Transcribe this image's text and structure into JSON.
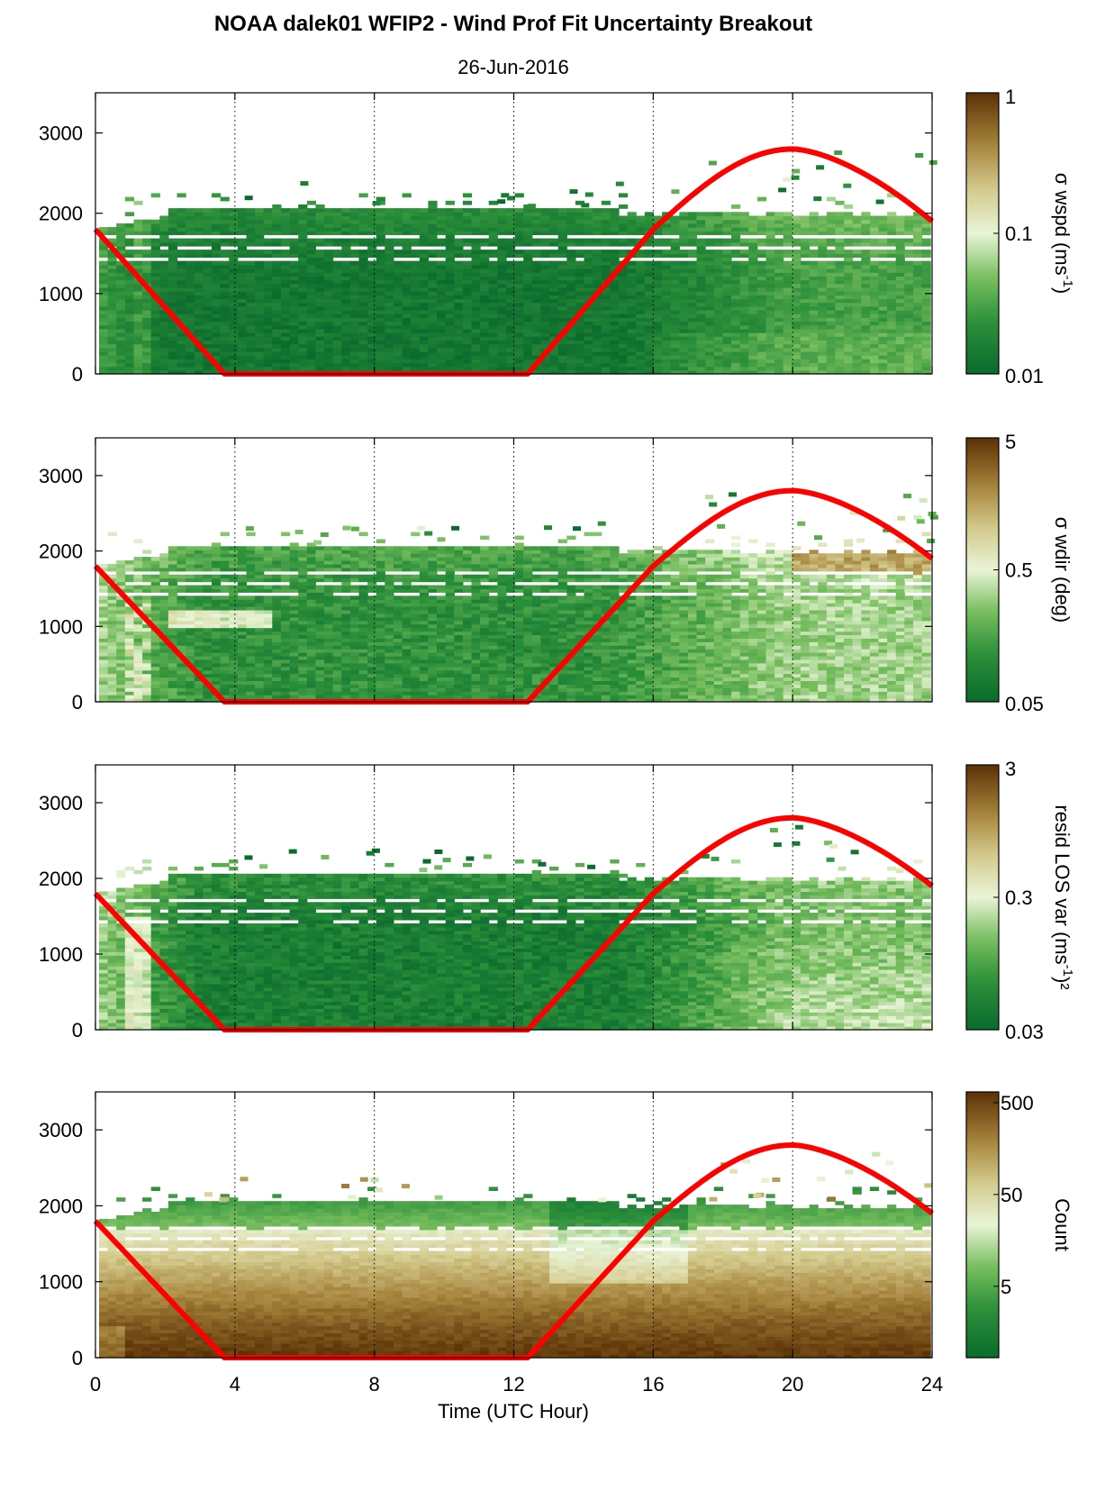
{
  "figure": {
    "title": "NOAA dalek01 WFIP2 - Wind Prof Fit Uncertainty Breakout",
    "subtitle": "26-Jun-2016",
    "xlabel": "Time (UTC Hour)",
    "colors": {
      "sun_line": "#ff0000",
      "low": "#0b6b2e",
      "mid": "#e9f4d6",
      "high": "#5a3106"
    }
  },
  "chart_data": [
    {
      "type": "heatmap",
      "xlabel": "",
      "ylabel": "",
      "xlim": [
        0,
        24
      ],
      "ylim": [
        0,
        3500
      ],
      "xticks": [
        0,
        4,
        8,
        12,
        16,
        20,
        24
      ],
      "xtick_labels": [
        "",
        "",
        "",
        "",
        "",
        "",
        ""
      ],
      "yticks": [
        0,
        1000,
        2000,
        3000
      ],
      "ytick_labels": [
        "0",
        "1000",
        "2000",
        "3000"
      ],
      "grid": "vertical dotted",
      "colorbar": {
        "label": "σ wspd (ms",
        "label_sup": "-1",
        "label_suffix": ")",
        "scale": "log",
        "ticks": [
          0.01,
          0.1,
          1
        ],
        "tick_labels": [
          "0.01",
          "0.1",
          "1"
        ]
      },
      "pattern": "wspd",
      "sun_elevation_curve": {
        "x": [
          0,
          3.7,
          12.4,
          16,
          20,
          24
        ],
        "y": [
          1800,
          0,
          0,
          1800,
          2800,
          1900
        ]
      }
    },
    {
      "type": "heatmap",
      "xlabel": "",
      "ylabel": "",
      "xlim": [
        0,
        24
      ],
      "ylim": [
        0,
        3500
      ],
      "xticks": [
        0,
        4,
        8,
        12,
        16,
        20,
        24
      ],
      "xtick_labels": [
        "",
        "",
        "",
        "",
        "",
        "",
        ""
      ],
      "yticks": [
        0,
        1000,
        2000,
        3000
      ],
      "ytick_labels": [
        "0",
        "1000",
        "2000",
        "3000"
      ],
      "grid": "vertical dotted",
      "colorbar": {
        "label": "σ wdir (deg)",
        "label_sup": "",
        "label_suffix": "",
        "scale": "log",
        "ticks": [
          0.05,
          0.5,
          5
        ],
        "tick_labels": [
          "0.05",
          "0.5",
          "5"
        ]
      },
      "pattern": "wdir",
      "sun_elevation_curve": {
        "x": [
          0,
          3.7,
          12.4,
          16,
          20,
          24
        ],
        "y": [
          1800,
          0,
          0,
          1800,
          2800,
          1900
        ]
      }
    },
    {
      "type": "heatmap",
      "xlabel": "",
      "ylabel": "",
      "xlim": [
        0,
        24
      ],
      "ylim": [
        0,
        3500
      ],
      "xticks": [
        0,
        4,
        8,
        12,
        16,
        20,
        24
      ],
      "xtick_labels": [
        "",
        "",
        "",
        "",
        "",
        "",
        ""
      ],
      "yticks": [
        0,
        1000,
        2000,
        3000
      ],
      "ytick_labels": [
        "0",
        "1000",
        "2000",
        "3000"
      ],
      "grid": "vertical dotted",
      "colorbar": {
        "label": "resid LOS var (ms",
        "label_sup": "-1",
        "label_suffix": ")²",
        "scale": "log",
        "ticks": [
          0.03,
          0.3,
          3
        ],
        "tick_labels": [
          "0.03",
          "0.3",
          "3"
        ]
      },
      "pattern": "resid",
      "sun_elevation_curve": {
        "x": [
          0,
          3.7,
          12.4,
          16,
          20,
          24
        ],
        "y": [
          1800,
          0,
          0,
          1800,
          2800,
          1900
        ]
      }
    },
    {
      "type": "heatmap",
      "xlabel": "Time (UTC Hour)",
      "ylabel": "",
      "xlim": [
        0,
        24
      ],
      "ylim": [
        0,
        3500
      ],
      "xticks": [
        0,
        4,
        8,
        12,
        16,
        20,
        24
      ],
      "xtick_labels": [
        "0",
        "4",
        "8",
        "12",
        "16",
        "20",
        "24"
      ],
      "yticks": [
        0,
        1000,
        2000,
        3000
      ],
      "ytick_labels": [
        "0",
        "1000",
        "2000",
        "3000"
      ],
      "grid": "vertical dotted",
      "colorbar": {
        "label": "Count",
        "label_sup": "",
        "label_suffix": "",
        "scale": "log",
        "ticks": [
          5,
          50,
          500
        ],
        "tick_labels": [
          "5",
          "50",
          "500"
        ]
      },
      "pattern": "count",
      "sun_elevation_curve": {
        "x": [
          0,
          3.7,
          12.4,
          16,
          20,
          24
        ],
        "y": [
          1800,
          0,
          0,
          1800,
          2800,
          1900
        ]
      }
    }
  ]
}
